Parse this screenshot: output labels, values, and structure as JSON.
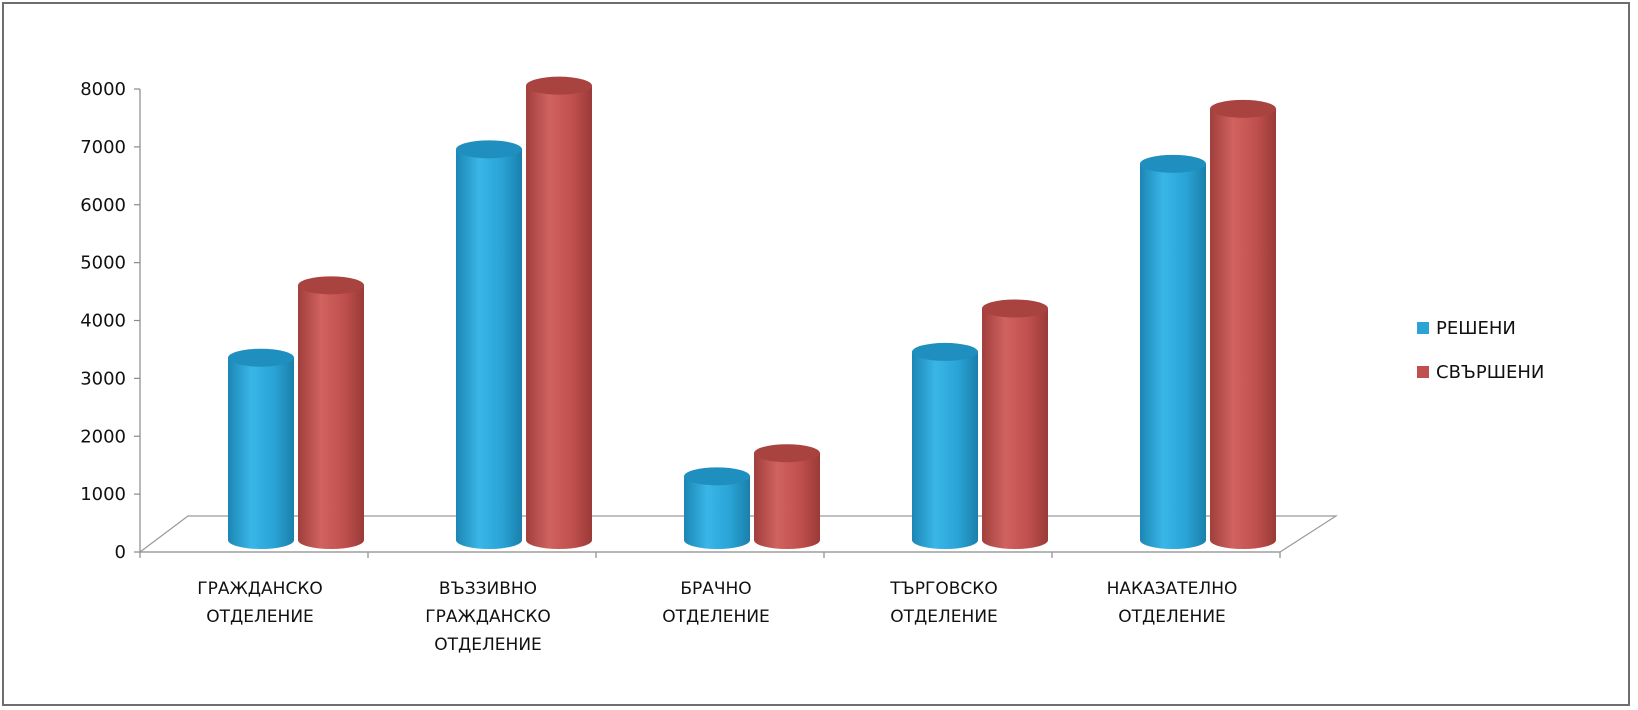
{
  "chart_data": {
    "type": "bar",
    "style": "3d-cylinder",
    "title": "",
    "xlabel": "",
    "ylabel": "",
    "ylim": [
      0,
      8000
    ],
    "yticks": [
      0,
      1000,
      2000,
      3000,
      4000,
      5000,
      6000,
      7000,
      8000
    ],
    "grid": false,
    "legend_position": "right",
    "categories": [
      [
        "ГРАЖДАНСКО",
        "ОТДЕЛЕНИЕ"
      ],
      [
        "ВЪЗЗИВНО",
        "ГРАЖДАНСКО",
        "ОТДЕЛЕНИЕ"
      ],
      [
        "БРАЧНО",
        "ОТДЕЛЕНИЕ"
      ],
      [
        "ТЪРГОВСКО",
        "ОТДЕЛЕНИЕ"
      ],
      [
        "НАКАЗАТЕЛНО",
        "ОТДЕЛЕНИЕ"
      ]
    ],
    "series": [
      {
        "name": "РЕШЕНИ",
        "color": "#2aa3d6",
        "values": [
          3150,
          6750,
          1100,
          3250,
          6500
        ]
      },
      {
        "name": "СВЪРШЕНИ",
        "color": "#c0504d",
        "values": [
          4400,
          7850,
          1500,
          4000,
          7450
        ]
      }
    ]
  }
}
